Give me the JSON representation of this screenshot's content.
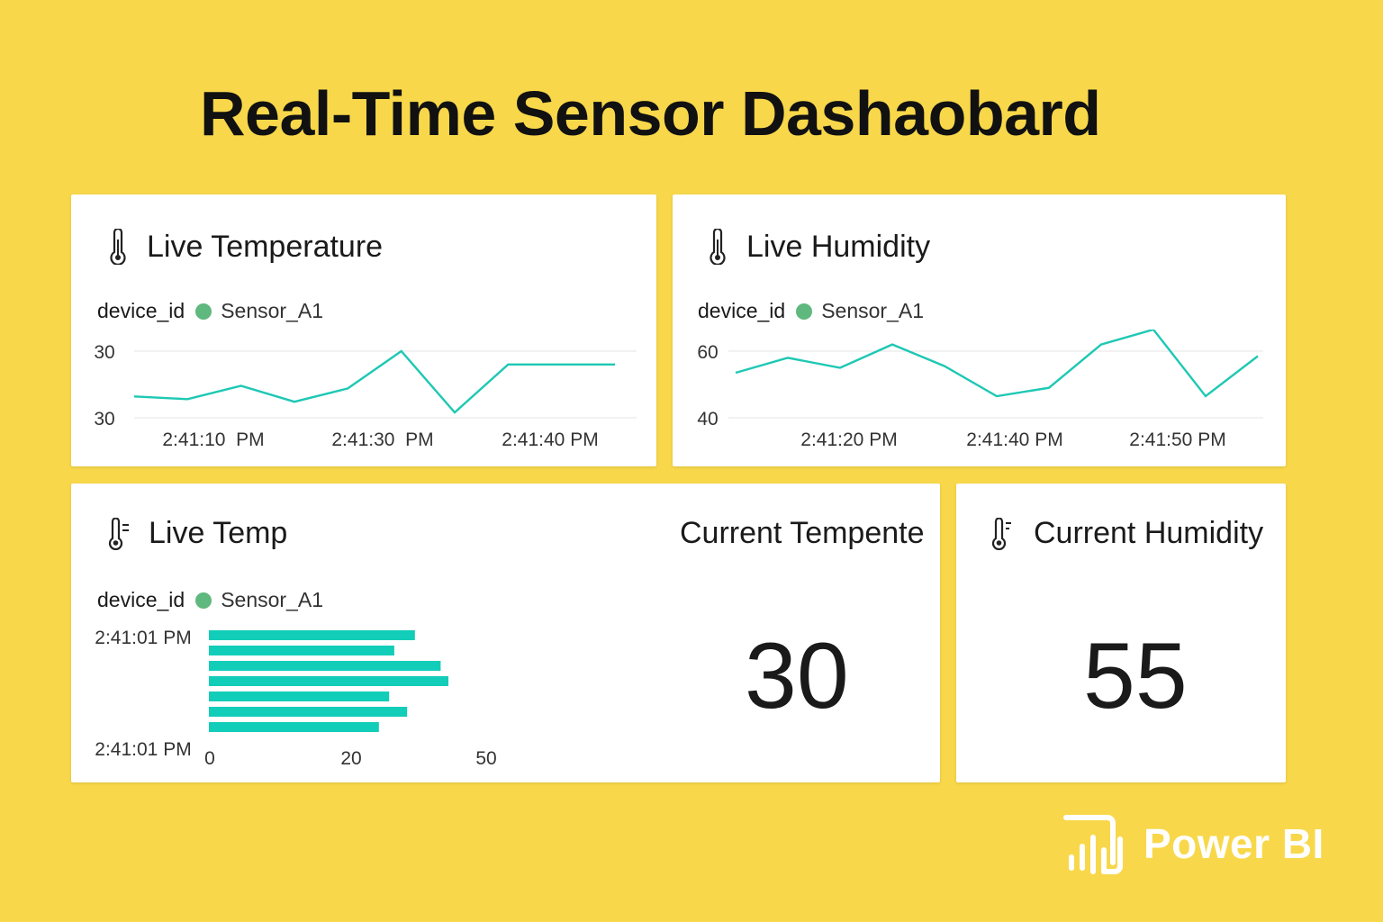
{
  "page": {
    "title": "Real-Time Sensor Dashaobard"
  },
  "colors": {
    "background": "#f8d84a",
    "line": "#1ec8b4",
    "bar": "#12cdb8",
    "legend_dot": "#5fb87d"
  },
  "legend": {
    "key": "device_id",
    "value": "Sensor_A1"
  },
  "cards": {
    "temperature": {
      "title": "Live Temperature",
      "icon": "thermometer-icon"
    },
    "humidity": {
      "title": "Live Humidity",
      "icon": "thermometer-icon"
    },
    "temp_bar": {
      "title": "Live Temp",
      "icon": "thermometer-lines-icon"
    },
    "current_temp": {
      "label": "Current Tempente",
      "value": "30"
    },
    "current_humidity": {
      "label": "Current Humidity",
      "value": "55",
      "icon": "thermometer-lines-icon"
    }
  },
  "chart_data": [
    {
      "type": "line",
      "series": [
        {
          "values": [
            28.8,
            28.7,
            29.2,
            28.6,
            29.1,
            30.5,
            28.2,
            30.0,
            30.0,
            30.0
          ]
        }
      ],
      "y_tick_labels": [
        "30",
        "30"
      ],
      "x_tick_labels": [
        "2:41:10  PM",
        "2:41:30  PM",
        "2:41:40 PM"
      ],
      "legend": "top-left"
    },
    {
      "type": "line",
      "series": [
        {
          "values": [
            53.5,
            58,
            55,
            62,
            55.5,
            46.5,
            49,
            62,
            66.5,
            46.5,
            58.5
          ]
        }
      ],
      "ylim": [
        40,
        60
      ],
      "y_tick_labels": [
        "60",
        "40"
      ],
      "x_tick_labels": [
        "2:41:20 PM",
        "2:41:40 PM",
        "2:41:50 PM"
      ],
      "legend": "top-left"
    },
    {
      "type": "bar",
      "orientation": "horizontal",
      "values": [
        40,
        36,
        45,
        46.5,
        35,
        38.5,
        33
      ],
      "y_tick_labels": [
        "2:41:01 PM",
        "2:41:01 PM"
      ],
      "x_tick_labels": [
        "0",
        "20",
        "50"
      ],
      "legend": "top-left"
    }
  ],
  "brand": {
    "name": "Power BI"
  }
}
